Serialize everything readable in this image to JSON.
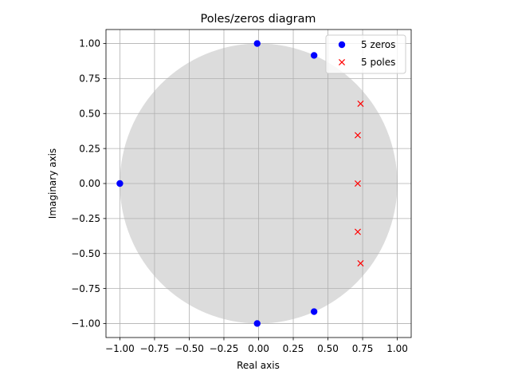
{
  "chart_data": {
    "type": "scatter",
    "title": "Poles/zeros diagram",
    "xlabel": "Real axis",
    "ylabel": "Imaginary axis",
    "xlim": [
      -1.1,
      1.1
    ],
    "ylim": [
      -1.1,
      1.1
    ],
    "grid": true,
    "unit_circle": {
      "center": [
        0,
        0
      ],
      "radius": 1,
      "color": "#dcdcdc"
    },
    "x_ticks": [
      -1.0,
      -0.75,
      -0.5,
      -0.25,
      0.0,
      0.25,
      0.5,
      0.75,
      1.0
    ],
    "y_ticks": [
      -1.0,
      -0.75,
      -0.5,
      -0.25,
      0.0,
      0.25,
      0.5,
      0.75,
      1.0
    ],
    "x_tick_labels": [
      "−1.00",
      "−0.75",
      "−0.50",
      "−0.25",
      "0.00",
      "0.25",
      "0.50",
      "0.75",
      "1.00"
    ],
    "y_tick_labels": [
      "−1.00",
      "−0.75",
      "−0.50",
      "−0.25",
      "0.00",
      "0.25",
      "0.50",
      "0.75",
      "1.00"
    ],
    "legend_position": "top-right",
    "series": [
      {
        "name": "5 zeros",
        "marker": "circle",
        "color": "#0000ff",
        "points": [
          [
            -1.0,
            0.0
          ],
          [
            -0.01,
            1.0
          ],
          [
            -0.01,
            -1.0
          ],
          [
            0.4,
            0.915
          ],
          [
            0.4,
            -0.915
          ]
        ]
      },
      {
        "name": "5 poles",
        "marker": "x",
        "color": "#ff0000",
        "points": [
          [
            0.735,
            0.57
          ],
          [
            0.715,
            0.345
          ],
          [
            0.715,
            0.0
          ],
          [
            0.715,
            -0.345
          ],
          [
            0.735,
            -0.57
          ]
        ]
      }
    ]
  }
}
